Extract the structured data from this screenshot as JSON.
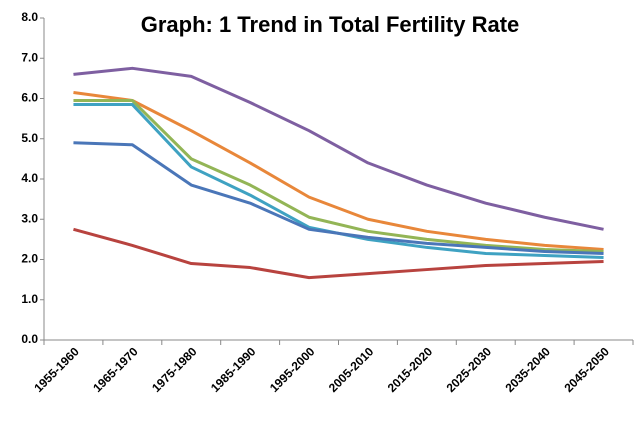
{
  "chart_data": {
    "type": "line",
    "title": "Graph: 1 Trend in Total Fertility Rate",
    "categories": [
      "1955-1960",
      "1965-1970",
      "1975-1980",
      "1985-1990",
      "1995-2000",
      "2005-2010",
      "2015-2020",
      "2025-2030",
      "2035-2040",
      "2045-2050"
    ],
    "series": [
      {
        "color": "#7e5fa1",
        "values": [
          6.6,
          6.75,
          6.55,
          5.9,
          5.2,
          4.4,
          3.85,
          3.4,
          3.05,
          2.75
        ]
      },
      {
        "color": "#e8873a",
        "values": [
          6.15,
          5.95,
          5.2,
          4.4,
          3.55,
          3.0,
          2.7,
          2.5,
          2.35,
          2.25
        ]
      },
      {
        "color": "#93b556",
        "values": [
          5.95,
          5.95,
          4.5,
          3.85,
          3.05,
          2.7,
          2.5,
          2.35,
          2.25,
          2.2
        ]
      },
      {
        "color": "#3fa2c2",
        "values": [
          5.85,
          5.85,
          4.3,
          3.6,
          2.8,
          2.5,
          2.3,
          2.15,
          2.1,
          2.05
        ]
      },
      {
        "color": "#4a76b8",
        "values": [
          4.9,
          4.85,
          3.85,
          3.4,
          2.75,
          2.55,
          2.4,
          2.3,
          2.2,
          2.15
        ]
      },
      {
        "color": "#b8433f",
        "values": [
          2.75,
          2.35,
          1.9,
          1.8,
          1.55,
          1.65,
          1.75,
          1.85,
          1.9,
          1.95
        ]
      }
    ],
    "ylim": [
      0,
      8
    ],
    "yticks": [
      {
        "value": 0,
        "label": "0.0"
      },
      {
        "value": 1,
        "label": "1.0"
      },
      {
        "value": 2,
        "label": "2.0"
      },
      {
        "value": 3,
        "label": "3.0"
      },
      {
        "value": 4,
        "label": "4.0"
      },
      {
        "value": 5,
        "label": "5.0"
      },
      {
        "value": 6,
        "label": "6.0"
      },
      {
        "value": 7,
        "label": "7.0"
      },
      {
        "value": 8,
        "label": "8.0"
      }
    ],
    "grid": false
  }
}
